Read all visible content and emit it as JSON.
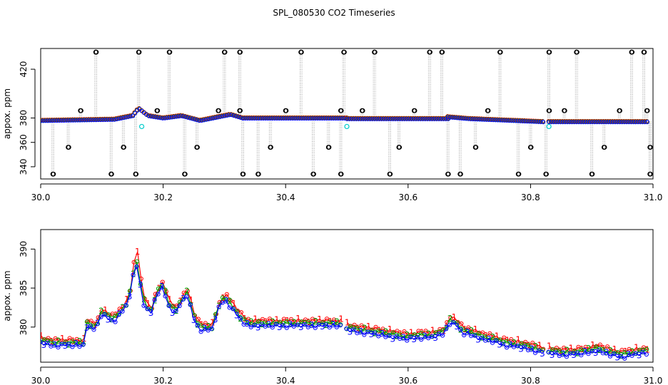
{
  "chart_data": [
    {
      "type": "scatter",
      "title": "SPL_080530  CO2 Timeseries",
      "xlabel": "",
      "ylabel": "appox. ppm",
      "xlim": [
        30.0,
        31.0
      ],
      "ylim": [
        330,
        437
      ],
      "x_ticks": [
        30.0,
        30.2,
        30.4,
        30.6,
        30.8,
        31.0
      ],
      "x_tick_labels": [
        "30.0",
        "30.2",
        "30.4",
        "30.6",
        "30.8",
        "31.0"
      ],
      "y_ticks": [
        340,
        360,
        380,
        420
      ],
      "y_tick_labels": [
        "340",
        "360",
        "380",
        "420"
      ],
      "grid": false,
      "baseline_segments": [
        {
          "x": [
            30.0,
            30.12,
            30.15,
            30.16,
            30.175,
            30.2,
            30.23,
            30.26,
            30.29,
            30.31,
            30.33
          ],
          "y": [
            378,
            379,
            382,
            388,
            382,
            380,
            382,
            378,
            381,
            383,
            380
          ]
        },
        {
          "x": [
            30.33,
            30.5
          ],
          "y": [
            380,
            380
          ]
        },
        {
          "x": [
            30.5,
            30.665
          ],
          "y": [
            379.5,
            379.5
          ]
        },
        {
          "x": [
            30.665,
            30.7,
            30.75,
            30.82
          ],
          "y": [
            381,
            379.5,
            378.5,
            377
          ]
        },
        {
          "x": [
            30.83,
            30.99
          ],
          "y": [
            377,
            377
          ]
        }
      ],
      "spikes_high": {
        "x": [
          30.09,
          30.16,
          30.21,
          30.3,
          30.325,
          30.425,
          30.495,
          30.545,
          30.635,
          30.655,
          30.75,
          30.83,
          30.875,
          30.965,
          30.985
        ],
        "y": [
          434,
          434,
          434,
          434,
          434,
          434,
          434,
          434,
          434,
          434,
          434,
          434,
          434,
          434,
          434
        ]
      },
      "spikes_mid_high": {
        "x": [
          30.065,
          30.19,
          30.29,
          30.325,
          30.4,
          30.49,
          30.525,
          30.61,
          30.73,
          30.83,
          30.855,
          30.945,
          30.99
        ],
        "y": [
          386,
          386,
          386,
          386,
          386,
          386,
          386,
          386,
          386,
          386,
          386,
          386,
          386
        ]
      },
      "spikes_mid_low": {
        "x": [
          30.045,
          30.135,
          30.255,
          30.375,
          30.47,
          30.585,
          30.71,
          30.8,
          30.92,
          30.995
        ],
        "y": [
          356,
          356,
          356,
          356,
          356,
          356,
          356,
          356,
          356,
          356
        ]
      },
      "spikes_low": {
        "x": [
          30.02,
          30.115,
          30.155,
          30.235,
          30.33,
          30.355,
          30.445,
          30.49,
          30.57,
          30.665,
          30.685,
          30.78,
          30.825,
          30.9,
          30.995
        ],
        "y": [
          334,
          334,
          334,
          334,
          334,
          334,
          334,
          334,
          334,
          334,
          334,
          334,
          334,
          334,
          334
        ]
      },
      "cyan_points": {
        "x": [
          30.165,
          30.5,
          30.83
        ],
        "y": [
          373,
          373,
          373
        ]
      }
    },
    {
      "type": "line",
      "title": "",
      "xlabel": "",
      "ylabel": "appox. ppm",
      "xlim": [
        30.0,
        31.0
      ],
      "ylim": [
        375.5,
        392.5
      ],
      "x_ticks": [
        30.0,
        30.2,
        30.4,
        30.6,
        30.8,
        31.0
      ],
      "x_tick_labels": [
        "30.0",
        "30.2",
        "30.4",
        "30.6",
        "30.8",
        "31.0"
      ],
      "y_ticks": [
        380,
        385,
        390
      ],
      "y_tick_labels": [
        "380",
        "385",
        "390"
      ],
      "grid": false,
      "series": [
        {
          "name": "1",
          "color": "#ff0000",
          "label": "1"
        },
        {
          "name": "2",
          "color": "#00a000",
          "label": "2"
        },
        {
          "name": "3",
          "color": "#0000ff",
          "label": "3"
        }
      ],
      "segments": [
        {
          "x": [
            30.0,
            30.02,
            30.04,
            30.06,
            30.07,
            30.075,
            30.09,
            30.1,
            30.11,
            30.12,
            30.13,
            30.14,
            30.15,
            30.155,
            30.16,
            30.17,
            30.18,
            30.19,
            30.2,
            30.21,
            30.22,
            30.23,
            30.24,
            30.25,
            30.26,
            30.27,
            30.28,
            30.29,
            30.3,
            30.31,
            30.32,
            30.33,
            30.34,
            30.36,
            30.38,
            30.4,
            30.42,
            30.44,
            30.46,
            30.48,
            30.49
          ],
          "y": [
            378.3,
            378.0,
            378.0,
            378.0,
            378.0,
            380.5,
            380.0,
            382.0,
            381.5,
            381.0,
            382.0,
            383.0,
            385.5,
            389.5,
            387.0,
            383.0,
            382.0,
            384.5,
            385.5,
            383.0,
            382.0,
            383.5,
            384.5,
            381.5,
            380.0,
            380.0,
            380.0,
            382.5,
            384.0,
            383.0,
            382.0,
            381.0,
            380.5,
            380.5,
            380.5,
            380.5,
            380.5,
            380.5,
            380.5,
            380.5,
            380.5
          ]
        },
        {
          "x": [
            30.5,
            30.52,
            30.54,
            30.56,
            30.58,
            30.6,
            30.62,
            30.64,
            30.66,
            30.665,
            30.67,
            30.68,
            30.69,
            30.7,
            30.72,
            30.74,
            30.76,
            30.78,
            30.8,
            30.82
          ],
          "y": [
            380.0,
            379.7,
            379.5,
            379.3,
            379.0,
            378.8,
            379.0,
            379.0,
            379.5,
            380.5,
            381.0,
            380.5,
            379.5,
            379.5,
            378.8,
            378.5,
            378.0,
            377.8,
            377.5,
            377.0
          ]
        },
        {
          "x": [
            30.83,
            30.85,
            30.87,
            30.89,
            30.91,
            30.93,
            30.95,
            30.97,
            30.99
          ],
          "y": [
            377.0,
            376.8,
            376.8,
            377.0,
            377.3,
            376.8,
            376.5,
            376.8,
            377.0
          ]
        }
      ]
    }
  ]
}
